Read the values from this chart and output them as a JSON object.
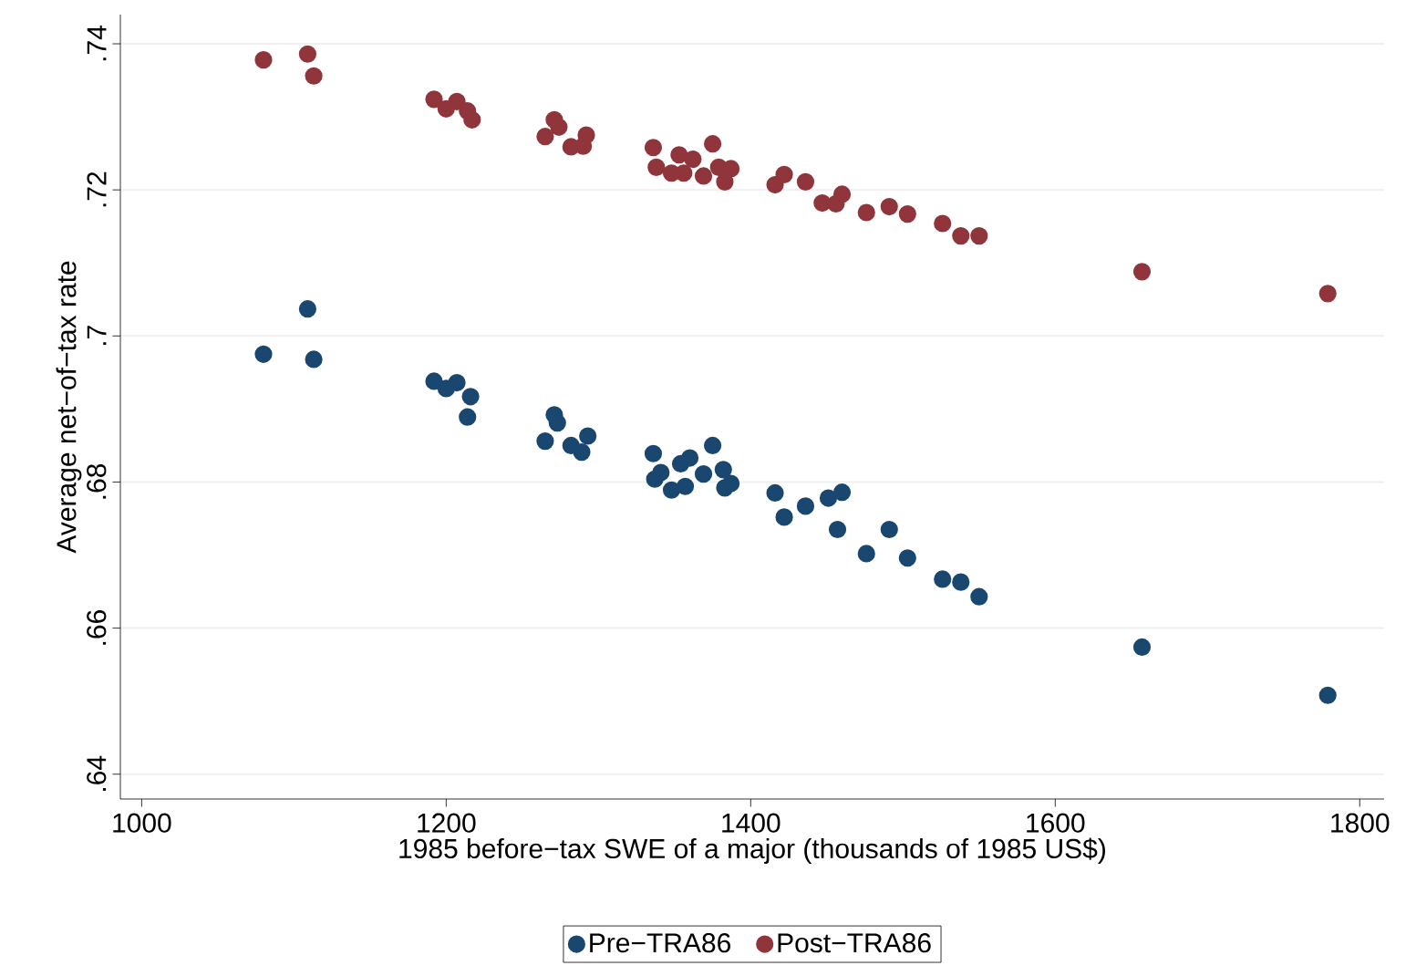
{
  "chart_data": {
    "type": "scatter",
    "xlabel": "1985 before−tax SWE of a major (thousands of 1985 US$)",
    "ylabel": "Average net−of−tax rate",
    "xlim": [
      986,
      1816
    ],
    "ylim": [
      0.6366,
      0.744
    ],
    "xticks": [
      1000,
      1200,
      1400,
      1600,
      1800
    ],
    "yticks": [
      {
        "value": 0.64,
        "label": ".64"
      },
      {
        "value": 0.66,
        "label": ".66"
      },
      {
        "value": 0.68,
        "label": ".68"
      },
      {
        "value": 0.7,
        "label": ".7"
      },
      {
        "value": 0.72,
        "label": ".72"
      },
      {
        "value": 0.74,
        "label": ".74"
      }
    ],
    "grid": "y",
    "legend": "bottom",
    "marker": "circle",
    "series": [
      {
        "name": "Pre−TRA86",
        "color": "#1a476f",
        "x": [
          1080,
          1109,
          1113,
          1192,
          1200,
          1207,
          1216,
          1214,
          1271,
          1273,
          1265,
          1282,
          1293,
          1289,
          1336,
          1341,
          1337,
          1354,
          1360,
          1348,
          1357,
          1375,
          1369,
          1382,
          1383,
          1387,
          1416,
          1422,
          1436,
          1451,
          1460,
          1457,
          1476,
          1491,
          1503,
          1526,
          1538,
          1550,
          1657,
          1779
        ],
        "values": [
          0.6975,
          0.7037,
          0.6968,
          0.6938,
          0.6928,
          0.6936,
          0.6917,
          0.6889,
          0.6892,
          0.6881,
          0.6856,
          0.685,
          0.6863,
          0.6841,
          0.6839,
          0.6813,
          0.6804,
          0.6825,
          0.6833,
          0.6789,
          0.6794,
          0.685,
          0.6811,
          0.6817,
          0.6792,
          0.6798,
          0.6785,
          0.6752,
          0.6767,
          0.6778,
          0.6786,
          0.6735,
          0.6702,
          0.6735,
          0.6696,
          0.6667,
          0.6663,
          0.6643,
          0.6574,
          0.6508
        ]
      },
      {
        "name": "Post−TRA86",
        "color": "#90353b",
        "x": [
          1080,
          1109,
          1113,
          1192,
          1200,
          1207,
          1214,
          1217,
          1271,
          1274,
          1265,
          1282,
          1292,
          1290,
          1336,
          1338,
          1353,
          1348,
          1362,
          1356,
          1375,
          1369,
          1379,
          1387,
          1383,
          1416,
          1422,
          1436,
          1447,
          1460,
          1456,
          1476,
          1491,
          1503,
          1526,
          1538,
          1550,
          1657,
          1779
        ],
        "values": [
          0.7378,
          0.7386,
          0.7356,
          0.7324,
          0.7311,
          0.7321,
          0.7308,
          0.7296,
          0.7296,
          0.7286,
          0.7273,
          0.7259,
          0.7275,
          0.726,
          0.7258,
          0.7231,
          0.7248,
          0.7223,
          0.7242,
          0.7223,
          0.7263,
          0.7219,
          0.7231,
          0.7229,
          0.7211,
          0.7207,
          0.7221,
          0.7211,
          0.7182,
          0.7194,
          0.7181,
          0.7169,
          0.7177,
          0.7167,
          0.7154,
          0.7137,
          0.7137,
          0.7088,
          0.7058
        ]
      }
    ]
  }
}
